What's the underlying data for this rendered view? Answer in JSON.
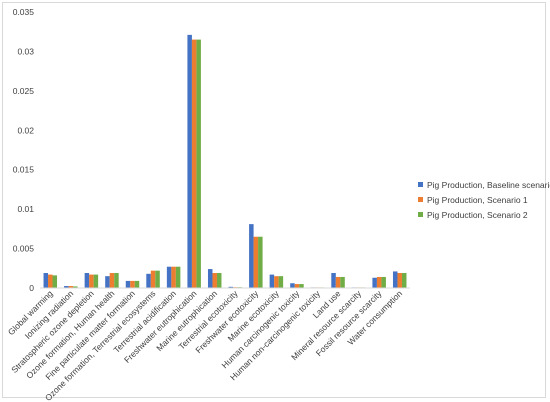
{
  "chart_data": {
    "type": "bar",
    "title": "",
    "xlabel": "",
    "ylabel": "",
    "ylim": [
      0,
      0.035
    ],
    "y_ticks": [
      "0",
      "0.005",
      "0.01",
      "0.015",
      "0.02",
      "0.025",
      "0.03",
      "0.035"
    ],
    "y_tick_values": [
      0,
      0.005,
      0.01,
      0.015,
      0.02,
      0.025,
      0.03,
      0.035
    ],
    "grid": false,
    "legend_position": "right",
    "categories": [
      "Global warming",
      "Ionizing radiation",
      "Stratospheric ozone depletion",
      "Ozone formation, Human health",
      "Fine particulate matter formation",
      "Ozone formation, Terrestrial ecosystems",
      "Terrestrial acidification",
      "Freshwater eutrophication",
      "Marine eutrophication",
      "Terrestrial ecotoxicity",
      "Freshwater ecotoxicity",
      "Marine ecotoxicity",
      "Human carcinogenic toxicity",
      "Human non-carcinogenic toxicity",
      "Land use",
      "Mineral resource scarcity",
      "Fossil resource scarcity",
      "Water consumption"
    ],
    "series": [
      {
        "name": "Pig Production, Baseline scenario",
        "color": "#4472c4",
        "values": [
          0.0019,
          0.00025,
          0.0019,
          0.0015,
          0.0009,
          0.0018,
          0.0027,
          0.0321,
          0.0024,
          0.00015,
          0.0081,
          0.0017,
          0.0006,
          5e-05,
          0.0019,
          3e-05,
          0.0013,
          0.0021
        ]
      },
      {
        "name": "Pig Production, Scenario 1",
        "color": "#ed7d31",
        "values": [
          0.0017,
          0.00025,
          0.0017,
          0.0019,
          0.0009,
          0.0022,
          0.0027,
          0.0315,
          0.0019,
          0.0001,
          0.0065,
          0.0015,
          0.0005,
          5e-05,
          0.0014,
          3e-05,
          0.0014,
          0.0019
        ]
      },
      {
        "name": "Pig Production, Scenario 2",
        "color": "#70ad47",
        "values": [
          0.0016,
          0.0002,
          0.0017,
          0.0019,
          0.0009,
          0.0022,
          0.0027,
          0.0315,
          0.0019,
          0.0001,
          0.0065,
          0.0015,
          0.0005,
          5e-05,
          0.0014,
          3e-05,
          0.0014,
          0.0019
        ]
      }
    ]
  }
}
